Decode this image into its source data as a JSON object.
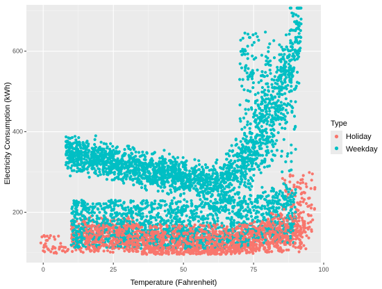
{
  "chart_data": {
    "type": "scatter",
    "title": "",
    "xlabel": "Temperature (Fahrenheit)",
    "ylabel": "Electricity Consumption (kWh)",
    "xlim": [
      -6,
      99
    ],
    "ylim": [
      75,
      715
    ],
    "x_ticks": [
      0,
      25,
      50,
      75,
      100
    ],
    "y_ticks": [
      200,
      400,
      600
    ],
    "grid": true,
    "panel_background": "#ebebeb",
    "legend": {
      "title": "Type",
      "position": "right",
      "entries": [
        "Holiday",
        "Weekday"
      ]
    },
    "series": [
      {
        "name": "Holiday",
        "color": "#f8766d",
        "description_points": [
          [
            0,
            138
          ],
          [
            0,
            100
          ],
          [
            2,
            104
          ],
          [
            5,
            110
          ],
          [
            8,
            125
          ],
          [
            10,
            140
          ],
          [
            12,
            160
          ],
          [
            15,
            180
          ],
          [
            20,
            200
          ],
          [
            25,
            150
          ],
          [
            30,
            180
          ],
          [
            35,
            140
          ],
          [
            40,
            130
          ],
          [
            45,
            120
          ],
          [
            50,
            115
          ],
          [
            55,
            110
          ],
          [
            60,
            112
          ],
          [
            65,
            115
          ],
          [
            70,
            125
          ],
          [
            75,
            140
          ],
          [
            80,
            160
          ],
          [
            85,
            180
          ],
          [
            88,
            200
          ],
          [
            90,
            220
          ],
          [
            92,
            200
          ],
          [
            95,
            220
          ],
          [
            85,
            290
          ],
          [
            88,
            300
          ],
          [
            80,
            230
          ],
          [
            70,
            170
          ]
        ]
      },
      {
        "name": "Weekday",
        "color": "#00bfc4",
        "description_points": [
          [
            8,
            370
          ],
          [
            15,
            360
          ],
          [
            20,
            340
          ],
          [
            25,
            330
          ],
          [
            30,
            320
          ],
          [
            35,
            310
          ],
          [
            40,
            300
          ],
          [
            45,
            290
          ],
          [
            50,
            275
          ],
          [
            55,
            265
          ],
          [
            60,
            270
          ],
          [
            65,
            280
          ],
          [
            70,
            310
          ],
          [
            75,
            380
          ],
          [
            80,
            450
          ],
          [
            85,
            530
          ],
          [
            88,
            600
          ],
          [
            90,
            650
          ],
          [
            92,
            700
          ],
          [
            94,
            690
          ],
          [
            20,
            200
          ],
          [
            30,
            180
          ],
          [
            40,
            170
          ],
          [
            50,
            160
          ],
          [
            60,
            170
          ],
          [
            70,
            190
          ],
          [
            80,
            220
          ],
          [
            85,
            260
          ],
          [
            90,
            300
          ],
          [
            10,
            150
          ]
        ]
      }
    ]
  }
}
